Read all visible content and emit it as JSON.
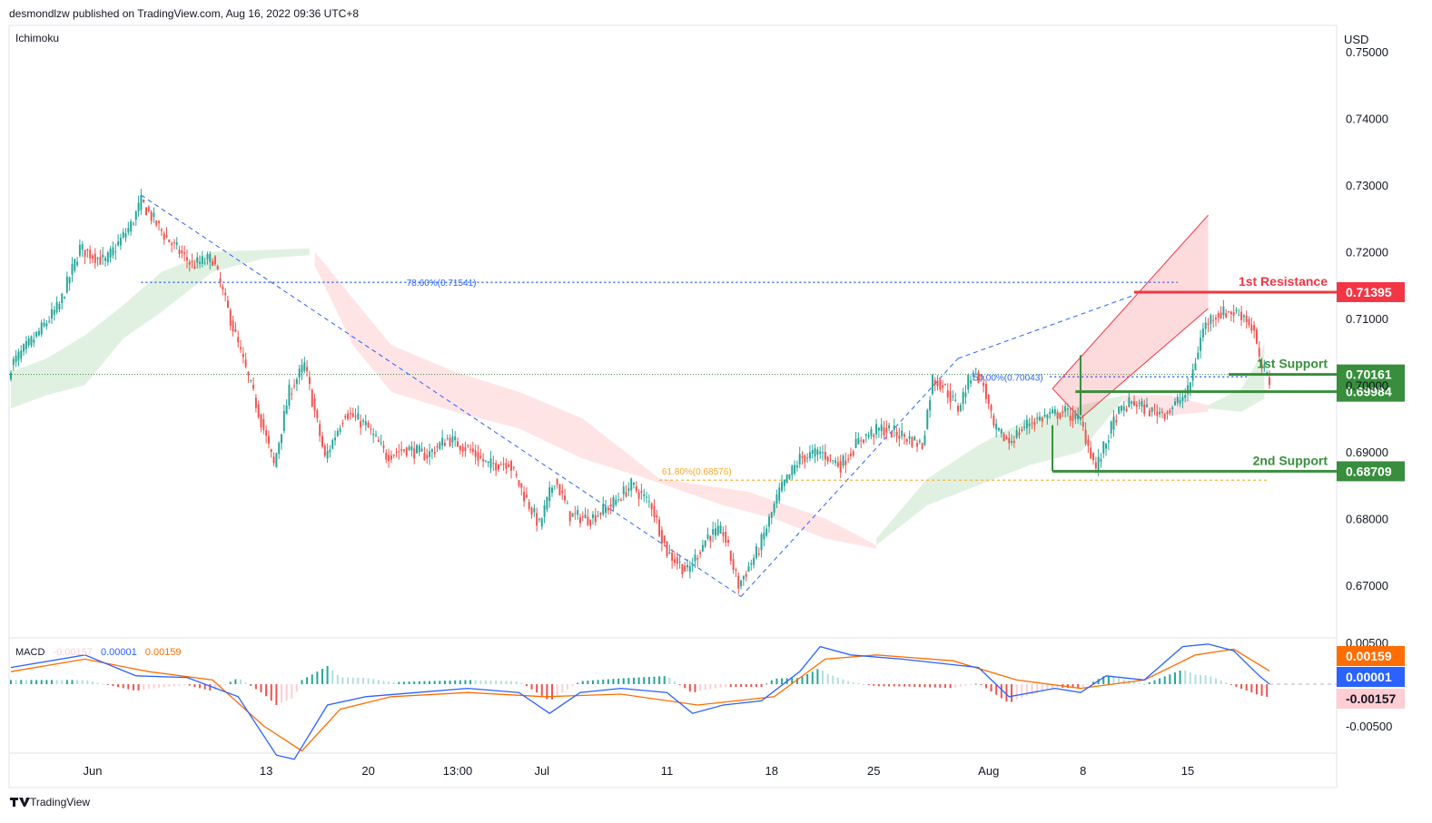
{
  "header": {
    "published": "desmondlzw published on TradingView.com, Aug 16, 2022 09:36 UTC+8"
  },
  "indicator_label": "Ichimoku",
  "currency": "USD",
  "footer": {
    "brand": "TradingView"
  },
  "colors": {
    "up": "#26a69a",
    "down": "#ef5350",
    "cloud_green": "#c8e6c9",
    "cloud_red": "#ffcdd2",
    "fib_blue": "#2962ff",
    "fib_gold": "#f9a825",
    "resistance": "#f23645",
    "support": "#388e3c",
    "macd_blue": "#2962ff",
    "signal_orange": "#ff6d00"
  },
  "chart_data": [
    {
      "type": "candlestick",
      "title": "",
      "y_ticks": [
        "0.75000",
        "0.74000",
        "0.73000",
        "0.72000",
        "0.71000",
        "0.70000",
        "0.69000",
        "0.68000",
        "0.67000"
      ],
      "ylim": [
        0.6633,
        0.7505
      ],
      "x_ticks": [
        "Jun",
        "13",
        "20",
        "13:00",
        "Jul",
        "11",
        "18",
        "25",
        "Aug",
        "8",
        "15"
      ],
      "price_path": [
        [
          1,
          0.703
        ],
        [
          10,
          0.707
        ],
        [
          20,
          0.712
        ],
        [
          28,
          0.7205
        ],
        [
          38,
          0.7185
        ],
        [
          48,
          0.724
        ],
        [
          52,
          0.7275
        ],
        [
          62,
          0.722
        ],
        [
          72,
          0.718
        ],
        [
          80,
          0.719
        ],
        [
          90,
          0.706
        ],
        [
          98,
          0.696
        ],
        [
          104,
          0.688
        ],
        [
          110,
          0.699
        ],
        [
          116,
          0.703
        ],
        [
          124,
          0.689
        ],
        [
          132,
          0.696
        ],
        [
          140,
          0.694
        ],
        [
          148,
          0.6895
        ],
        [
          156,
          0.6905
        ],
        [
          164,
          0.6895
        ],
        [
          172,
          0.692
        ],
        [
          180,
          0.6905
        ],
        [
          188,
          0.688
        ],
        [
          196,
          0.6885
        ],
        [
          202,
          0.6835
        ],
        [
          208,
          0.679
        ],
        [
          214,
          0.686
        ],
        [
          220,
          0.6805
        ],
        [
          228,
          0.68
        ],
        [
          236,
          0.682
        ],
        [
          244,
          0.685
        ],
        [
          252,
          0.682
        ],
        [
          258,
          0.675
        ],
        [
          266,
          0.672
        ],
        [
          274,
          0.6775
        ],
        [
          280,
          0.678
        ],
        [
          286,
          0.67
        ],
        [
          294,
          0.6755
        ],
        [
          302,
          0.684
        ],
        [
          310,
          0.689
        ],
        [
          318,
          0.69
        ],
        [
          326,
          0.688
        ],
        [
          334,
          0.692
        ],
        [
          342,
          0.6935
        ],
        [
          350,
          0.6925
        ],
        [
          358,
          0.691
        ],
        [
          362,
          0.701
        ],
        [
          366,
          0.7
        ],
        [
          372,
          0.6965
        ],
        [
          378,
          0.7025
        ],
        [
          382,
          0.7
        ],
        [
          386,
          0.6935
        ],
        [
          392,
          0.6915
        ],
        [
          400,
          0.6945
        ],
        [
          408,
          0.6955
        ],
        [
          414,
          0.696
        ],
        [
          420,
          0.6945
        ],
        [
          426,
          0.6875
        ],
        [
          434,
          0.6955
        ],
        [
          440,
          0.6975
        ],
        [
          448,
          0.696
        ],
        [
          454,
          0.696
        ],
        [
          462,
          0.699
        ],
        [
          468,
          0.7085
        ],
        [
          472,
          0.7105
        ],
        [
          478,
          0.711
        ],
        [
          484,
          0.7105
        ],
        [
          488,
          0.708
        ],
        [
          490,
          0.7035
        ],
        [
          494,
          0.7005
        ]
      ],
      "levels": [
        {
          "label": "1st Resistance",
          "price": "0.71395",
          "value": 0.71395
        },
        {
          "label": "1st Support",
          "price": "0.70161",
          "value": 0.70161
        },
        {
          "label": "",
          "price": "0.69984",
          "value": 0.69984
        },
        {
          "label": "2nd Support",
          "price": "0.68709",
          "value": 0.68709
        }
      ],
      "fib_labels": [
        {
          "label": "78.60%(0.71541)",
          "value": 0.71541
        },
        {
          "label": "50.00%(0.70043)",
          "value": 0.70043
        },
        {
          "label": "61.80%(0.68576)",
          "value": 0.68576
        }
      ],
      "last_price": 0.70161
    },
    {
      "type": "macd",
      "title": "MACD",
      "legend_values": [
        "-0.00157",
        "0.00001",
        "0.00159"
      ],
      "y_ticks": [
        "0.00500",
        "-0.00500"
      ],
      "badges": [
        {
          "value": "0.00159",
          "series": "signal"
        },
        {
          "value": "0.00001",
          "series": "macd"
        },
        {
          "value": "-0.00157",
          "series": "histogram"
        }
      ],
      "macd_path": [
        [
          1,
          0.002
        ],
        [
          30,
          0.0035
        ],
        [
          50,
          0.001
        ],
        [
          70,
          0.0008
        ],
        [
          90,
          -0.0015
        ],
        [
          105,
          -0.0085
        ],
        [
          112,
          -0.009
        ],
        [
          125,
          -0.0025
        ],
        [
          140,
          -0.0015
        ],
        [
          160,
          -0.001
        ],
        [
          180,
          -0.0005
        ],
        [
          200,
          -0.001
        ],
        [
          212,
          -0.0035
        ],
        [
          224,
          -0.001
        ],
        [
          240,
          -0.0005
        ],
        [
          258,
          -0.001
        ],
        [
          268,
          -0.0035
        ],
        [
          280,
          -0.0025
        ],
        [
          295,
          -0.002
        ],
        [
          310,
          0.0015
        ],
        [
          318,
          0.0045
        ],
        [
          330,
          0.0035
        ],
        [
          350,
          0.003
        ],
        [
          365,
          0.0025
        ],
        [
          380,
          0.002
        ],
        [
          392,
          -0.0015
        ],
        [
          410,
          -0.0005
        ],
        [
          420,
          -0.001
        ],
        [
          430,
          0.001
        ],
        [
          445,
          0.0005
        ],
        [
          460,
          0.0045
        ],
        [
          470,
          0.0048
        ],
        [
          480,
          0.004
        ],
        [
          490,
          0.001
        ],
        [
          494,
          1e-05
        ]
      ],
      "signal_path": [
        [
          1,
          0.0015
        ],
        [
          30,
          0.003
        ],
        [
          55,
          0.0015
        ],
        [
          80,
          0.0005
        ],
        [
          100,
          -0.005
        ],
        [
          115,
          -0.008
        ],
        [
          130,
          -0.003
        ],
        [
          150,
          -0.0015
        ],
        [
          180,
          -0.001
        ],
        [
          210,
          -0.0015
        ],
        [
          240,
          -0.0012
        ],
        [
          270,
          -0.0025
        ],
        [
          300,
          -0.0015
        ],
        [
          320,
          0.003
        ],
        [
          340,
          0.0035
        ],
        [
          370,
          0.0028
        ],
        [
          395,
          0.0005
        ],
        [
          420,
          -0.0005
        ],
        [
          445,
          0.0005
        ],
        [
          465,
          0.0035
        ],
        [
          480,
          0.0042
        ],
        [
          494,
          0.00159
        ]
      ]
    }
  ]
}
